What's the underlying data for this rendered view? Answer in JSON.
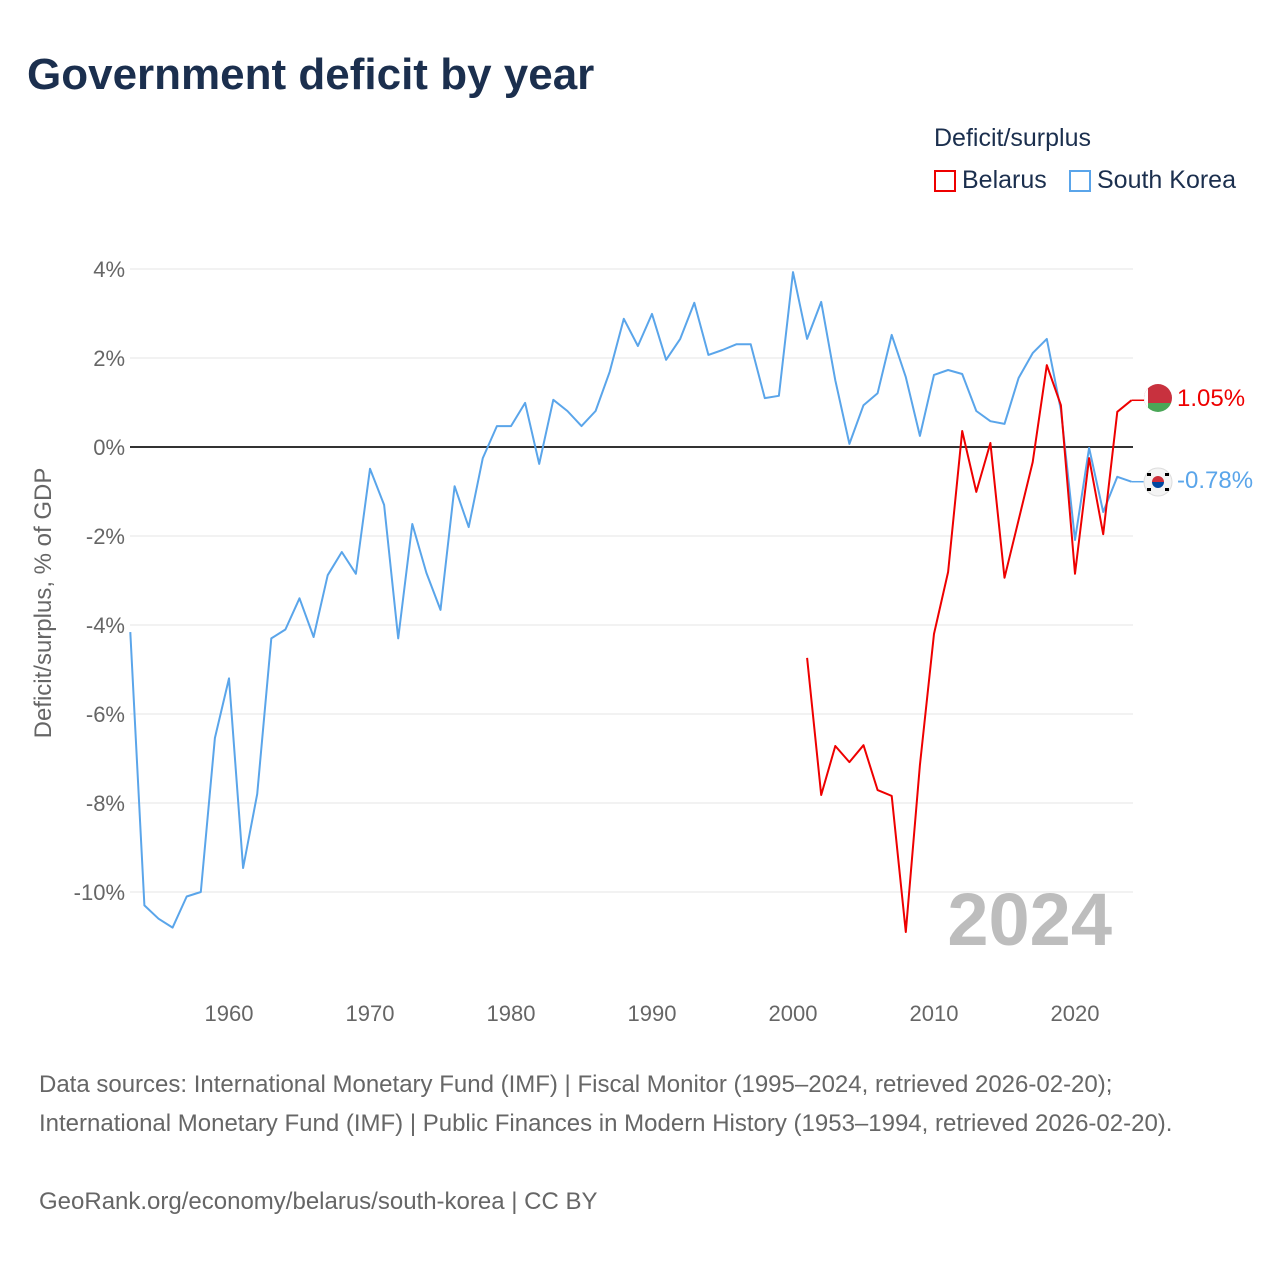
{
  "title": "Government deficit by year",
  "legend": {
    "title": "Deficit/surplus",
    "items": [
      {
        "name": "Belarus",
        "color": "#ee0000"
      },
      {
        "name": "South Korea",
        "color": "#5aa5ea"
      }
    ]
  },
  "watermark_year": "2024",
  "end_labels": {
    "belarus": "1.05%",
    "south_korea": "-0.78%"
  },
  "chart_data": {
    "type": "line",
    "title": "Government deficit by year",
    "ylabel": "Deficit/surplus, % of GDP",
    "xlabel": "",
    "xlim": [
      1953,
      2024
    ],
    "ylim": [
      -12,
      4
    ],
    "yticks": [
      4,
      2,
      0,
      -2,
      -4,
      -6,
      -8,
      -10
    ],
    "ytick_labels": [
      "4%",
      "2%",
      "0%",
      "-2%",
      "-4%",
      "-6%",
      "-8%",
      "-10%"
    ],
    "xticks": [
      1960,
      1970,
      1980,
      1990,
      2000,
      2010,
      2020
    ],
    "xtick_labels": [
      "1960",
      "1970",
      "1980",
      "1990",
      "2000",
      "2010",
      "2020"
    ],
    "grid": true,
    "legend_position": "top-right",
    "series": [
      {
        "name": "South Korea",
        "color": "#5aa5ea",
        "start_year": 1953,
        "values": [
          -4.16,
          -10.3,
          -10.6,
          -10.8,
          -10.1,
          -10.0,
          -6.54,
          -5.2,
          -9.46,
          -7.8,
          -4.3,
          -4.1,
          -3.4,
          -4.27,
          -2.88,
          -2.36,
          -2.85,
          -0.49,
          -1.3,
          -4.3,
          -1.73,
          -2.83,
          -3.66,
          -0.88,
          -1.8,
          -0.25,
          0.47,
          0.47,
          0.99,
          -0.38,
          1.06,
          0.81,
          0.47,
          0.81,
          1.69,
          2.88,
          2.27,
          2.99,
          1.96,
          2.43,
          3.24,
          2.07,
          2.18,
          2.31,
          2.31,
          1.1,
          1.15,
          3.93,
          2.43,
          3.26,
          1.5,
          0.07,
          0.94,
          1.21,
          2.52,
          1.57,
          0.25,
          1.62,
          1.73,
          1.64,
          0.81,
          0.58,
          0.52,
          1.55,
          2.11,
          2.43,
          0.83,
          -2.09,
          -0.02,
          -1.46,
          -0.67,
          -0.78
        ]
      },
      {
        "name": "Belarus",
        "color": "#ee0000",
        "start_year": 2001,
        "values": [
          -4.74,
          -7.82,
          -6.72,
          -7.08,
          -6.7,
          -7.71,
          -7.84,
          -10.9,
          -7.15,
          -4.2,
          -2.81,
          0.36,
          -1.01,
          0.09,
          -2.94,
          -1.64,
          -0.34,
          1.84,
          0.94,
          -2.85,
          -0.25,
          -1.96,
          0.79,
          1.05
        ]
      }
    ]
  },
  "footer": {
    "sources": "Data sources: International Monetary Fund (IMF) | Fiscal Monitor (1995–2024, retrieved 2026-02-20); International Monetary Fund (IMF) | Public Finances in Modern History (1953–1994, retrieved 2026-02-20).",
    "link": "GeoRank.org/economy/belarus/south-korea | CC BY"
  }
}
